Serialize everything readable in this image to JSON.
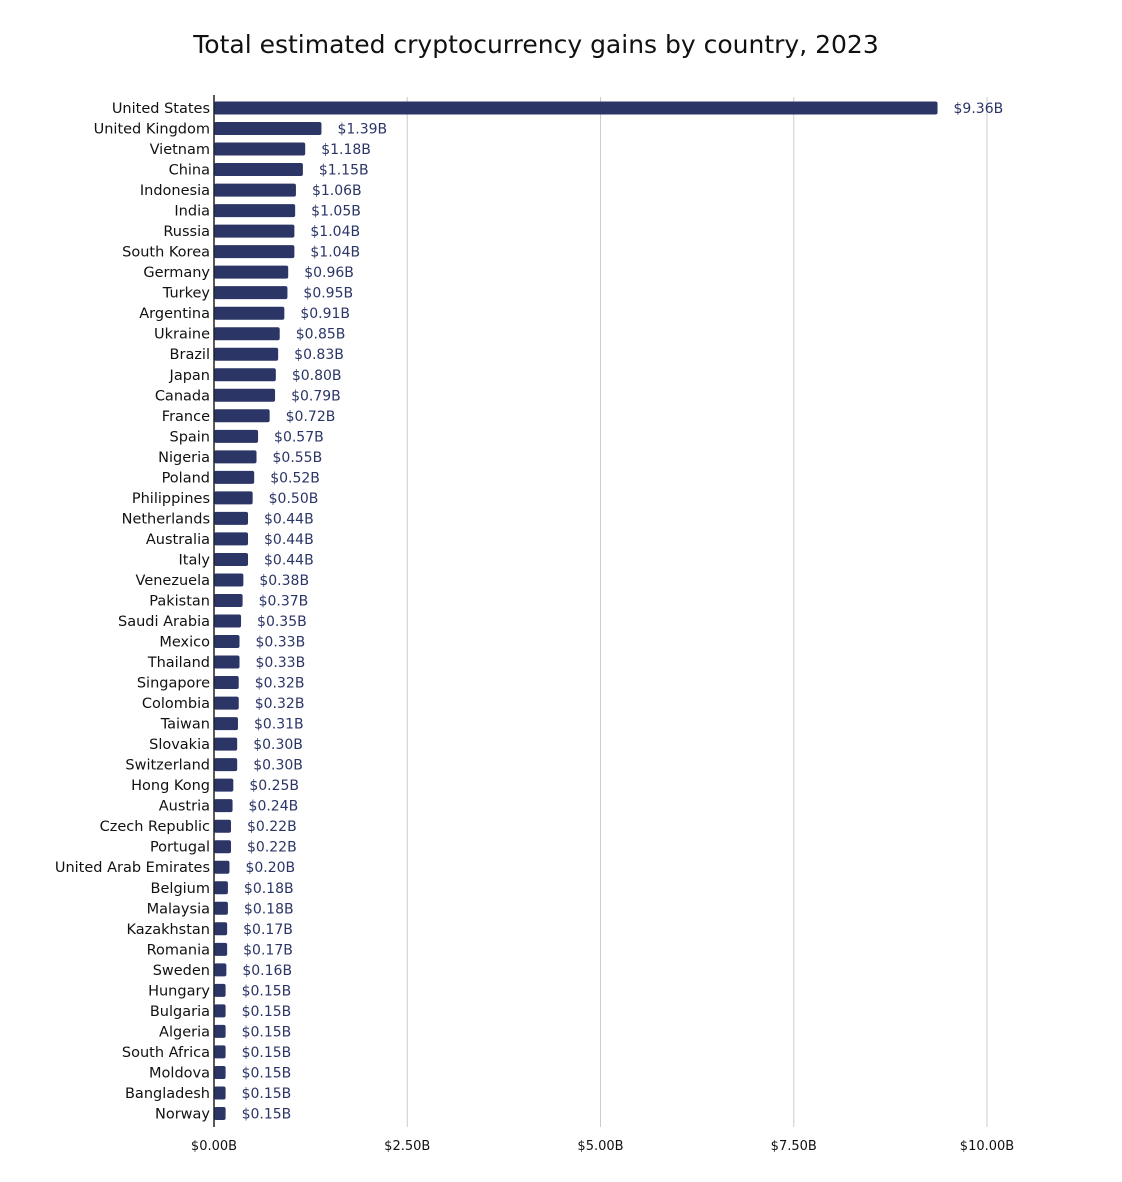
{
  "chart_data": {
    "type": "bar",
    "orientation": "horizontal",
    "title": "Total estimated cryptocurrency gains by country, 2023",
    "xlabel": "",
    "ylabel": "",
    "xlim": [
      0,
      10
    ],
    "grid": "vertical",
    "bar_color": "#2b3566",
    "label_color": "#2b3566",
    "categories": [
      "United States",
      "United Kingdom",
      "Vietnam",
      "China",
      "Indonesia",
      "India",
      "Russia",
      "South Korea",
      "Germany",
      "Turkey",
      "Argentina",
      "Ukraine",
      "Brazil",
      "Japan",
      "Canada",
      "France",
      "Spain",
      "Nigeria",
      "Poland",
      "Philippines",
      "Netherlands",
      "Australia",
      "Italy",
      "Venezuela",
      "Pakistan",
      "Saudi Arabia",
      "Mexico",
      "Thailand",
      "Singapore",
      "Colombia",
      "Taiwan",
      "Slovakia",
      "Switzerland",
      "Hong Kong",
      "Austria",
      "Czech Republic",
      "Portugal",
      "United Arab Emirates",
      "Belgium",
      "Malaysia",
      "Kazakhstan",
      "Romania",
      "Sweden",
      "Hungary",
      "Bulgaria",
      "Algeria",
      "South Africa",
      "Moldova",
      "Bangladesh",
      "Norway"
    ],
    "values": [
      9.36,
      1.39,
      1.18,
      1.15,
      1.06,
      1.05,
      1.04,
      1.04,
      0.96,
      0.95,
      0.91,
      0.85,
      0.83,
      0.8,
      0.79,
      0.72,
      0.57,
      0.55,
      0.52,
      0.5,
      0.44,
      0.44,
      0.44,
      0.38,
      0.37,
      0.35,
      0.33,
      0.33,
      0.32,
      0.32,
      0.31,
      0.3,
      0.3,
      0.25,
      0.24,
      0.22,
      0.22,
      0.2,
      0.18,
      0.18,
      0.17,
      0.17,
      0.16,
      0.15,
      0.15,
      0.15,
      0.15,
      0.15,
      0.15,
      0.15
    ],
    "value_labels": [
      "$9.36B",
      "$1.39B",
      "$1.18B",
      "$1.15B",
      "$1.06B",
      "$1.05B",
      "$1.04B",
      "$1.04B",
      "$0.96B",
      "$0.95B",
      "$0.91B",
      "$0.85B",
      "$0.83B",
      "$0.80B",
      "$0.79B",
      "$0.72B",
      "$0.57B",
      "$0.55B",
      "$0.52B",
      "$0.50B",
      "$0.44B",
      "$0.44B",
      "$0.44B",
      "$0.38B",
      "$0.37B",
      "$0.35B",
      "$0.33B",
      "$0.33B",
      "$0.32B",
      "$0.32B",
      "$0.31B",
      "$0.30B",
      "$0.30B",
      "$0.25B",
      "$0.24B",
      "$0.22B",
      "$0.22B",
      "$0.20B",
      "$0.18B",
      "$0.18B",
      "$0.17B",
      "$0.17B",
      "$0.16B",
      "$0.15B",
      "$0.15B",
      "$0.15B",
      "$0.15B",
      "$0.15B",
      "$0.15B",
      "$0.15B"
    ],
    "x_ticks": [
      0,
      2.5,
      5,
      7.5,
      10
    ],
    "x_tick_labels": [
      "$0.00B",
      "$2.50B",
      "$5.00B",
      "$7.50B",
      "$10.00B"
    ]
  }
}
